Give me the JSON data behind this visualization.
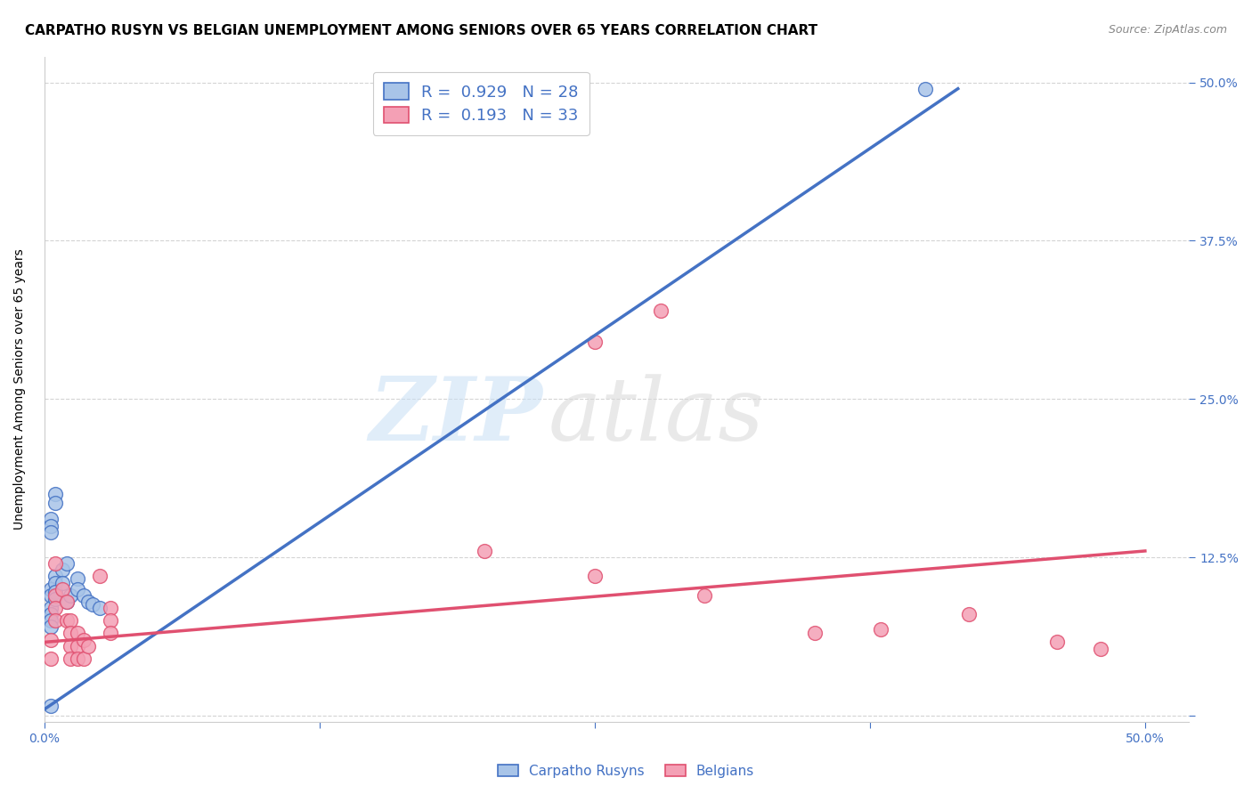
{
  "title": "CARPATHO RUSYN VS BELGIAN UNEMPLOYMENT AMONG SENIORS OVER 65 YEARS CORRELATION CHART",
  "source": "Source: ZipAtlas.com",
  "ylabel": "Unemployment Among Seniors over 65 years",
  "xlim": [
    0.0,
    0.52
  ],
  "ylim": [
    -0.005,
    0.52
  ],
  "yticks": [
    0.0,
    0.125,
    0.25,
    0.375,
    0.5
  ],
  "ytick_labels": [
    "",
    "12.5%",
    "25.0%",
    "37.5%",
    "50.0%"
  ],
  "xticks": [
    0.0,
    0.125,
    0.25,
    0.375,
    0.5
  ],
  "xtick_labels": [
    "0.0%",
    "",
    "",
    "",
    "50.0%"
  ],
  "legend_r_values": [
    "0.929",
    "0.193"
  ],
  "legend_n_values": [
    "28",
    "33"
  ],
  "blue_scatter_x": [
    0.003,
    0.003,
    0.003,
    0.003,
    0.003,
    0.003,
    0.003,
    0.003,
    0.003,
    0.005,
    0.005,
    0.005,
    0.005,
    0.005,
    0.005,
    0.008,
    0.008,
    0.01,
    0.01,
    0.012,
    0.015,
    0.015,
    0.018,
    0.02,
    0.022,
    0.025,
    0.4,
    0.003
  ],
  "blue_scatter_y": [
    0.155,
    0.15,
    0.145,
    0.1,
    0.095,
    0.085,
    0.08,
    0.075,
    0.07,
    0.175,
    0.168,
    0.11,
    0.105,
    0.098,
    0.092,
    0.115,
    0.105,
    0.12,
    0.09,
    0.095,
    0.108,
    0.1,
    0.095,
    0.09,
    0.088,
    0.085,
    0.495,
    0.008
  ],
  "pink_scatter_x": [
    0.003,
    0.003,
    0.005,
    0.005,
    0.005,
    0.005,
    0.008,
    0.01,
    0.01,
    0.012,
    0.012,
    0.012,
    0.012,
    0.015,
    0.015,
    0.015,
    0.018,
    0.018,
    0.02,
    0.025,
    0.03,
    0.03,
    0.03,
    0.2,
    0.25,
    0.28,
    0.3,
    0.35,
    0.38,
    0.42,
    0.46,
    0.48,
    0.25
  ],
  "pink_scatter_y": [
    0.06,
    0.045,
    0.12,
    0.095,
    0.085,
    0.075,
    0.1,
    0.09,
    0.075,
    0.075,
    0.065,
    0.055,
    0.045,
    0.065,
    0.055,
    0.045,
    0.06,
    0.045,
    0.055,
    0.11,
    0.085,
    0.075,
    0.065,
    0.13,
    0.11,
    0.32,
    0.095,
    0.065,
    0.068,
    0.08,
    0.058,
    0.053,
    0.295
  ],
  "blue_line_x": [
    0.0,
    0.415
  ],
  "blue_line_y": [
    0.005,
    0.495
  ],
  "pink_line_x": [
    0.0,
    0.5
  ],
  "pink_line_y": [
    0.058,
    0.13
  ],
  "blue_color": "#4472C4",
  "blue_scatter_color": "#a8c4e8",
  "pink_color": "#E05070",
  "pink_scatter_color": "#F4A0B5",
  "watermark_zip": "ZIP",
  "watermark_atlas": "atlas",
  "background_color": "#ffffff",
  "grid_color": "#d0d0d0",
  "title_fontsize": 11,
  "axis_label_fontsize": 10,
  "tick_fontsize": 10,
  "source_fontsize": 9
}
